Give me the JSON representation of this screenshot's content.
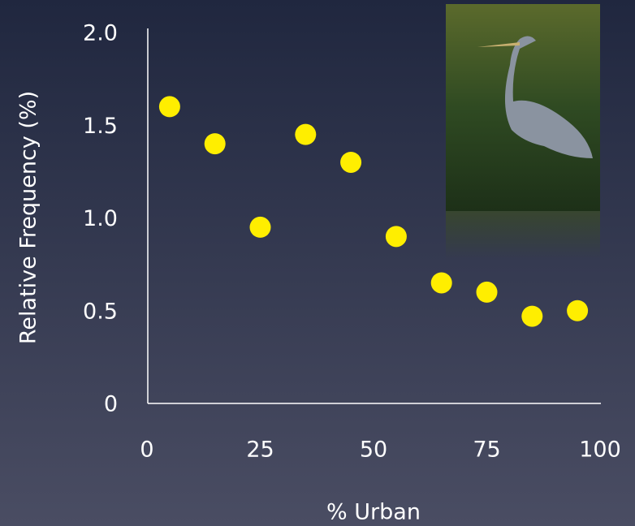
{
  "chart_data": {
    "type": "scatter",
    "x_label": "% Urban",
    "y_label": "Relative Frequency (%)",
    "x": [
      5,
      15,
      25,
      35,
      45,
      55,
      65,
      75,
      85,
      95
    ],
    "values": [
      1.6,
      1.4,
      0.95,
      1.45,
      1.3,
      0.9,
      0.65,
      0.6,
      0.47,
      0.5
    ],
    "color": "#ffee00",
    "xlim": [
      0,
      100
    ],
    "xticks": [
      0,
      25,
      50,
      75,
      100
    ],
    "ylim": [
      0,
      2.0
    ],
    "yticks": [
      0,
      0.5,
      {
        "value": 1.0,
        "label": "1.0"
      },
      1.5,
      {
        "value": 2.0,
        "label": "2.0"
      }
    ],
    "grid": false
  }
}
